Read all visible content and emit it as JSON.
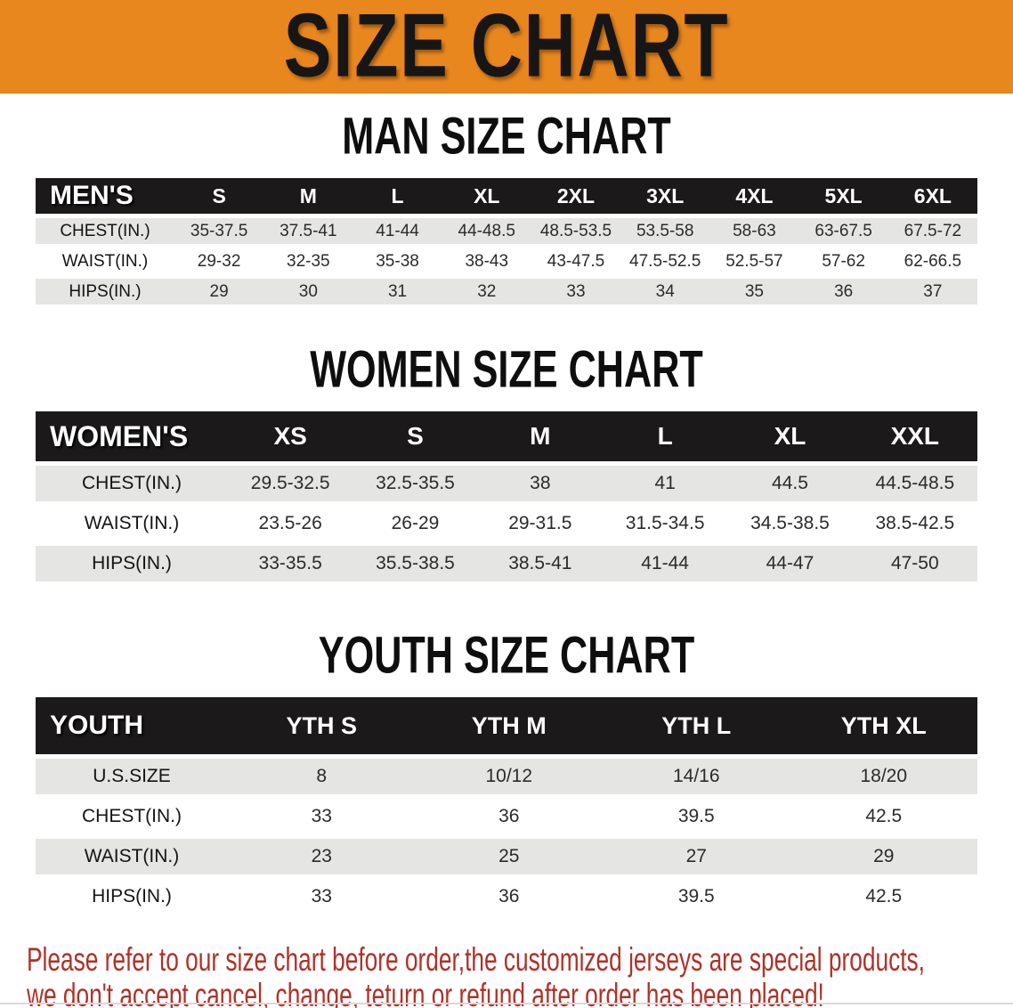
{
  "banner": {
    "title": "SIZE CHART"
  },
  "sections": [
    {
      "heading": "MAN SIZE CHART",
      "table": {
        "header_label": "MEN'S",
        "columns": [
          "S",
          "M",
          "L",
          "XL",
          "2XL",
          "3XL",
          "4XL",
          "5XL",
          "6XL"
        ],
        "rows": [
          {
            "label": "CHEST(IN.)",
            "values": [
              "35-37.5",
              "37.5-41",
              "41-44",
              "44-48.5",
              "48.5-53.5",
              "53.5-58",
              "58-63",
              "63-67.5",
              "67.5-72"
            ]
          },
          {
            "label": "WAIST(IN.)",
            "values": [
              "29-32",
              "32-35",
              "35-38",
              "38-43",
              "43-47.5",
              "47.5-52.5",
              "52.5-57",
              "57-62",
              "62-66.5"
            ]
          },
          {
            "label": "HIPS(IN.)",
            "values": [
              "29",
              "30",
              "31",
              "32",
              "33",
              "34",
              "35",
              "36",
              "37"
            ]
          }
        ]
      }
    },
    {
      "heading": "WOMEN SIZE CHART",
      "table": {
        "header_label": "WOMEN'S",
        "columns": [
          "XS",
          "S",
          "M",
          "L",
          "XL",
          "XXL"
        ],
        "rows": [
          {
            "label": "CHEST(IN.)",
            "values": [
              "29.5-32.5",
              "32.5-35.5",
              "38",
              "41",
              "44.5",
              "44.5-48.5"
            ]
          },
          {
            "label": "WAIST(IN.)",
            "values": [
              "23.5-26",
              "26-29",
              "29-31.5",
              "31.5-34.5",
              "34.5-38.5",
              "38.5-42.5"
            ]
          },
          {
            "label": "HIPS(IN.)",
            "values": [
              "33-35.5",
              "35.5-38.5",
              "38.5-41",
              "41-44",
              "44-47",
              "47-50"
            ]
          }
        ]
      }
    },
    {
      "heading": "YOUTH SIZE CHART",
      "table": {
        "header_label": "YOUTH",
        "columns": [
          "YTH S",
          "YTH M",
          "YTH L",
          "YTH XL"
        ],
        "rows": [
          {
            "label": "U.S.SIZE",
            "values": [
              "8",
              "10/12",
              "14/16",
              "18/20"
            ]
          },
          {
            "label": "CHEST(IN.)",
            "values": [
              "33",
              "36",
              "39.5",
              "42.5"
            ]
          },
          {
            "label": "WAIST(IN.)",
            "values": [
              "23",
              "25",
              "27",
              "29"
            ]
          },
          {
            "label": "HIPS(IN.)",
            "values": [
              "33",
              "36",
              "39.5",
              "42.5"
            ]
          }
        ]
      }
    }
  ],
  "footer": {
    "line1": "Please refer to our size chart before order,the customized jerseys are special products,",
    "line2": "we don't accept cancel, change, teturn or refund after order has been placed!"
  },
  "colors": {
    "banner_bg": "#E8871E",
    "banner_text": "#161616",
    "table_header_bg": "#1B1919",
    "table_header_text": "#FFFFFF",
    "row_shaded_bg": "#E5E5E3",
    "row_plain_bg": "#FFFFFF",
    "value_text": "#2B2B2B",
    "footer_text": "#AE3228"
  }
}
